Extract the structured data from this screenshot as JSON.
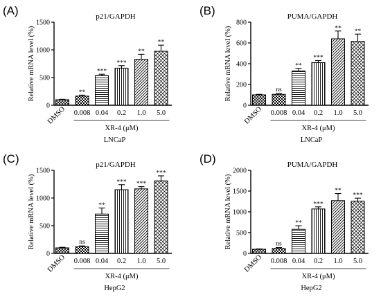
{
  "figure": {
    "colors": {
      "ink": "#000000",
      "bar_fill": "#ffffff",
      "background": "#ffffff"
    },
    "pattern_legend": {
      "dmso": "crosshatch",
      "0.008": "checkerboard",
      "0.04": "horizontal-lines",
      "0.2": "vertical-lines",
      "1.0": "diagonal-lines",
      "5.0": "cross-diagonal"
    }
  },
  "chart_data": [
    {
      "panel": "(A)",
      "type": "bar",
      "title": "p21/GAPDH",
      "ylabel": "Relative mRNA level (%)",
      "ylim": [
        0,
        1500
      ],
      "yticks": [
        0,
        500,
        1000,
        1500
      ],
      "categories": [
        "DMSO",
        "0.008",
        "0.04",
        "0.2",
        "1.0",
        "5.0"
      ],
      "values": [
        100,
        165,
        535,
        670,
        830,
        975
      ],
      "errors": [
        8,
        18,
        25,
        45,
        90,
        110
      ],
      "significance": [
        "",
        "**",
        "***",
        "***",
        "**",
        "**"
      ],
      "xlabel": "XR-4 (μM)",
      "cell_line": "LNCaP"
    },
    {
      "panel": "(B)",
      "type": "bar",
      "title": "PUMA/GAPDH",
      "ylabel": "Relative mRNA level (%)",
      "ylim": [
        0,
        800
      ],
      "yticks": [
        0,
        200,
        400,
        600,
        800
      ],
      "categories": [
        "DMSO",
        "0.008",
        "0.04",
        "0.2",
        "1.0",
        "5.0"
      ],
      "values": [
        100,
        105,
        330,
        410,
        640,
        615
      ],
      "errors": [
        5,
        8,
        25,
        20,
        75,
        70
      ],
      "significance": [
        "",
        "ns",
        "**",
        "***",
        "**",
        "**"
      ],
      "xlabel": "XR-4 (μM)",
      "cell_line": "LNCaP"
    },
    {
      "panel": "(C)",
      "type": "bar",
      "title": "p21/GAPDH",
      "ylabel": "Relative mRNA level (%)",
      "ylim": [
        0,
        1500
      ],
      "yticks": [
        0,
        500,
        1000,
        1500
      ],
      "categories": [
        "DMSO",
        "0.008",
        "0.04",
        "0.2",
        "1.0",
        "5.0"
      ],
      "values": [
        100,
        120,
        710,
        1150,
        1165,
        1310
      ],
      "errors": [
        10,
        15,
        110,
        90,
        40,
        90
      ],
      "significance": [
        "",
        "ns",
        "**",
        "***",
        "***",
        "***"
      ],
      "xlabel": "XR-4 (μM)",
      "cell_line": "HepG2"
    },
    {
      "panel": "(D)",
      "type": "bar",
      "title": "PUMA/GAPDH",
      "ylabel": "Relative mRNA level (%)",
      "ylim": [
        0,
        2000
      ],
      "yticks": [
        0,
        500,
        1000,
        1500,
        2000
      ],
      "categories": [
        "DMSO",
        "0.008",
        "0.04",
        "0.2",
        "1.0",
        "5.0"
      ],
      "values": [
        100,
        120,
        580,
        1070,
        1270,
        1260
      ],
      "errors": [
        8,
        20,
        85,
        50,
        170,
        70
      ],
      "significance": [
        "",
        "ns",
        "**",
        "***",
        "**",
        "***"
      ],
      "xlabel": "XR-4 (μM)",
      "cell_line": "HepG2"
    }
  ]
}
